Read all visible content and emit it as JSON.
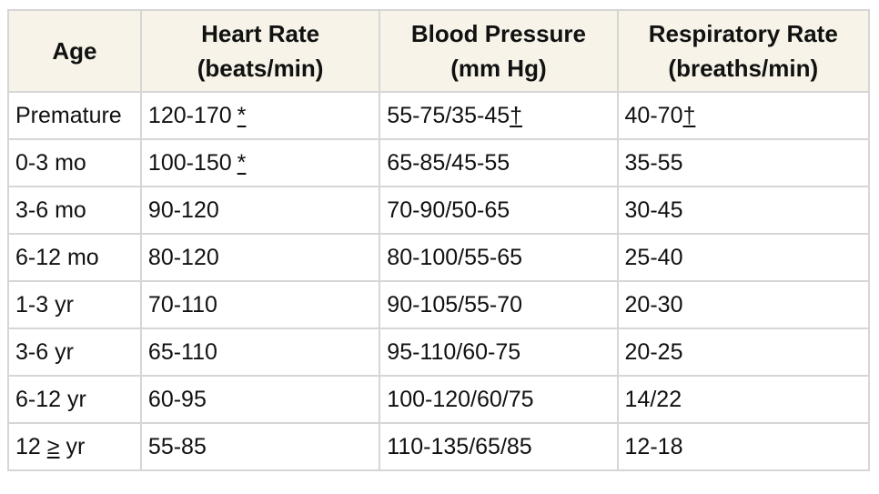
{
  "table": {
    "headers": {
      "age": "Age",
      "heart_rate": "Heart Rate",
      "heart_rate_unit": "(beats/min)",
      "blood_pressure": "Blood Pressure",
      "blood_pressure_unit": "(mm Hg)",
      "respiratory_rate": "Respiratory Rate",
      "respiratory_rate_unit": "(breaths/min)"
    },
    "rows": [
      {
        "age": "Premature",
        "hr": "120-170",
        "hr_note": "*",
        "bp": "55-75/35-45",
        "bp_note": "†",
        "rr": "40-70",
        "rr_note": "†"
      },
      {
        "age": "0-3 mo",
        "hr": "100-150",
        "hr_note": "*",
        "bp": "65-85/45-55",
        "rr": "35-55"
      },
      {
        "age": "3-6 mo",
        "hr": "90-120",
        "bp": "70-90/50-65",
        "rr": "30-45"
      },
      {
        "age": "6-12 mo",
        "hr": "80-120",
        "bp": "80-100/55-65",
        "rr": "25-40"
      },
      {
        "age": "1-3 yr",
        "hr": "70-110",
        "bp": "90-105/55-70",
        "rr": "20-30"
      },
      {
        "age": "3-6 yr",
        "hr": "65-110",
        "bp": "95-110/60-75",
        "rr": "20-25"
      },
      {
        "age": "6-12 yr",
        "hr": "60-95",
        "bp": "100-120/60/75",
        "rr": "14/22"
      },
      {
        "age_prefix": "12",
        "age_symbol": "≥",
        "age_suffix": "yr",
        "hr": "55-85",
        "bp": "110-135/65/85",
        "rr": "12-18"
      }
    ]
  }
}
